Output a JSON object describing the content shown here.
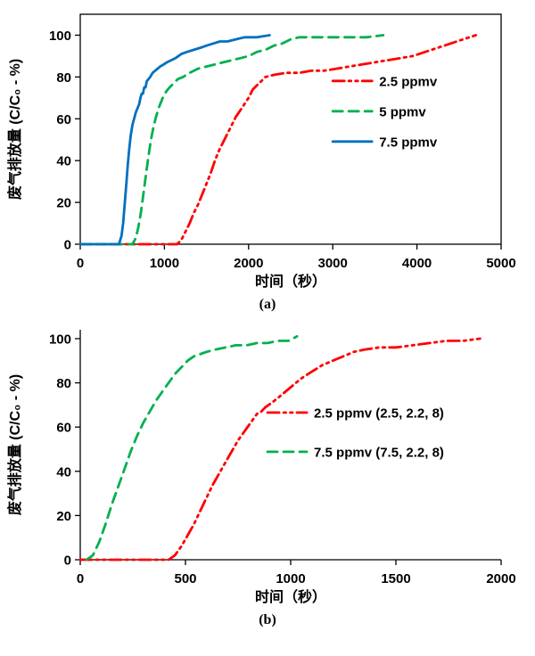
{
  "chart_data": [
    {
      "caption": "(a)",
      "type": "line",
      "xlabel": "时间（秒）",
      "ylabel": "废气排放量 (C/C₀ - %)",
      "xlim": [
        0,
        5000
      ],
      "ylim": [
        0,
        110
      ],
      "xticks": [
        0,
        1000,
        2000,
        3000,
        4000,
        5000
      ],
      "yticks": [
        0,
        20,
        40,
        60,
        80,
        100
      ],
      "frame": "box",
      "grid": false,
      "legend_pos": {
        "x": 0.6,
        "y": 0.29
      },
      "legend_spacing": 34,
      "series": [
        {
          "name": "2.5 ppmv",
          "color": "#ff0000",
          "dash": "dashdotdot",
          "points": [
            [
              0,
              0
            ],
            [
              400,
              0
            ],
            [
              800,
              0
            ],
            [
              1150,
              0
            ],
            [
              1200,
              2
            ],
            [
              1250,
              6
            ],
            [
              1300,
              10
            ],
            [
              1350,
              15
            ],
            [
              1400,
              19
            ],
            [
              1450,
              24
            ],
            [
              1500,
              29
            ],
            [
              1550,
              34
            ],
            [
              1600,
              40
            ],
            [
              1650,
              45
            ],
            [
              1700,
              49
            ],
            [
              1750,
              53
            ],
            [
              1800,
              57
            ],
            [
              1850,
              61
            ],
            [
              1900,
              64
            ],
            [
              1950,
              67
            ],
            [
              2000,
              70
            ],
            [
              2050,
              74
            ],
            [
              2100,
              76
            ],
            [
              2150,
              78
            ],
            [
              2200,
              80
            ],
            [
              2300,
              81
            ],
            [
              2450,
              82
            ],
            [
              2600,
              82
            ],
            [
              2750,
              83
            ],
            [
              2900,
              83
            ],
            [
              3050,
              84
            ],
            [
              3200,
              85
            ],
            [
              3350,
              86
            ],
            [
              3500,
              87
            ],
            [
              3650,
              88
            ],
            [
              3800,
              89
            ],
            [
              3950,
              90
            ],
            [
              4100,
              92
            ],
            [
              4250,
              94
            ],
            [
              4400,
              96
            ],
            [
              4550,
              98
            ],
            [
              4700,
              100
            ]
          ]
        },
        {
          "name": "5 ppmv",
          "color": "#00b050",
          "dash": "dashed",
          "points": [
            [
              0,
              0
            ],
            [
              300,
              0
            ],
            [
              620,
              0
            ],
            [
              660,
              3
            ],
            [
              690,
              8
            ],
            [
              720,
              15
            ],
            [
              750,
              24
            ],
            [
              780,
              33
            ],
            [
              810,
              42
            ],
            [
              840,
              50
            ],
            [
              870,
              56
            ],
            [
              900,
              61
            ],
            [
              940,
              66
            ],
            [
              980,
              70
            ],
            [
              1020,
              73
            ],
            [
              1060,
              75
            ],
            [
              1110,
              77
            ],
            [
              1160,
              79
            ],
            [
              1220,
              80
            ],
            [
              1300,
              82
            ],
            [
              1400,
              84
            ],
            [
              1500,
              85
            ],
            [
              1600,
              86
            ],
            [
              1700,
              87
            ],
            [
              1800,
              88
            ],
            [
              1900,
              89
            ],
            [
              2000,
              90
            ],
            [
              2100,
              92
            ],
            [
              2200,
              93
            ],
            [
              2300,
              95
            ],
            [
              2400,
              96
            ],
            [
              2500,
              98
            ],
            [
              2600,
              99
            ],
            [
              2800,
              99
            ],
            [
              3000,
              99
            ],
            [
              3200,
              99
            ],
            [
              3400,
              99
            ],
            [
              3600,
              100
            ]
          ]
        },
        {
          "name": "7.5 ppmv",
          "color": "#0070c0",
          "dash": "solid",
          "points": [
            [
              0,
              0
            ],
            [
              200,
              0
            ],
            [
              460,
              0
            ],
            [
              490,
              4
            ],
            [
              510,
              10
            ],
            [
              530,
              20
            ],
            [
              550,
              30
            ],
            [
              565,
              38
            ],
            [
              580,
              45
            ],
            [
              600,
              52
            ],
            [
              620,
              57
            ],
            [
              640,
              60
            ],
            [
              660,
              63
            ],
            [
              680,
              65
            ],
            [
              700,
              67
            ],
            [
              715,
              70
            ],
            [
              730,
              72
            ],
            [
              745,
              72
            ],
            [
              760,
              75
            ],
            [
              775,
              75
            ],
            [
              790,
              78
            ],
            [
              810,
              79
            ],
            [
              830,
              80
            ],
            [
              860,
              82
            ],
            [
              890,
              83
            ],
            [
              920,
              84
            ],
            [
              950,
              85
            ],
            [
              990,
              86
            ],
            [
              1030,
              87
            ],
            [
              1080,
              88
            ],
            [
              1130,
              89
            ],
            [
              1200,
              91
            ],
            [
              1270,
              92
            ],
            [
              1350,
              93
            ],
            [
              1430,
              94
            ],
            [
              1500,
              95
            ],
            [
              1580,
              96
            ],
            [
              1660,
              97
            ],
            [
              1750,
              97
            ],
            [
              1850,
              98
            ],
            [
              1950,
              99
            ],
            [
              2100,
              99
            ],
            [
              2250,
              100
            ]
          ]
        }
      ]
    },
    {
      "caption": "(b)",
      "type": "line",
      "xlabel": "时间（秒）",
      "ylabel": "废气排放量 (C/C₀ - %)",
      "xlim": [
        0,
        2000
      ],
      "ylim": [
        0,
        104
      ],
      "xticks": [
        0,
        500,
        1000,
        1500,
        2000
      ],
      "yticks": [
        0,
        20,
        40,
        60,
        80,
        100
      ],
      "frame": "axes",
      "grid": false,
      "legend_pos": {
        "x": 0.445,
        "y": 0.36
      },
      "legend_spacing": 44,
      "series": [
        {
          "name": "2.5 ppmv (2.5, 2.2, 8)",
          "color": "#ff0000",
          "dash": "dashdotdot",
          "points": [
            [
              0,
              0
            ],
            [
              150,
              0
            ],
            [
              300,
              0
            ],
            [
              420,
              0
            ],
            [
              450,
              2
            ],
            [
              480,
              6
            ],
            [
              510,
              11
            ],
            [
              540,
              16
            ],
            [
              570,
              22
            ],
            [
              600,
              28
            ],
            [
              630,
              34
            ],
            [
              660,
              39
            ],
            [
              690,
              44
            ],
            [
              720,
              49
            ],
            [
              750,
              54
            ],
            [
              780,
              58
            ],
            [
              810,
              62
            ],
            [
              840,
              66
            ],
            [
              860,
              67
            ],
            [
              880,
              69
            ],
            [
              910,
              71
            ],
            [
              950,
              74
            ],
            [
              1000,
              78
            ],
            [
              1050,
              82
            ],
            [
              1100,
              85
            ],
            [
              1150,
              88
            ],
            [
              1200,
              90
            ],
            [
              1250,
              92
            ],
            [
              1300,
              94
            ],
            [
              1350,
              95
            ],
            [
              1420,
              96
            ],
            [
              1500,
              96
            ],
            [
              1580,
              97
            ],
            [
              1660,
              98
            ],
            [
              1740,
              99
            ],
            [
              1820,
              99
            ],
            [
              1900,
              100
            ]
          ]
        },
        {
          "name": "7.5 ppmv (7.5, 2.2, 8)",
          "color": "#00b050",
          "dash": "dashed",
          "points": [
            [
              30,
              0
            ],
            [
              60,
              2
            ],
            [
              90,
              8
            ],
            [
              120,
              16
            ],
            [
              150,
              25
            ],
            [
              180,
              33
            ],
            [
              210,
              41
            ],
            [
              240,
              49
            ],
            [
              270,
              56
            ],
            [
              300,
              62
            ],
            [
              330,
              67
            ],
            [
              360,
              72
            ],
            [
              390,
              76
            ],
            [
              420,
              80
            ],
            [
              450,
              84
            ],
            [
              480,
              87
            ],
            [
              510,
              90
            ],
            [
              540,
              92
            ],
            [
              570,
              93
            ],
            [
              600,
              94
            ],
            [
              640,
              95
            ],
            [
              690,
              96
            ],
            [
              740,
              97
            ],
            [
              790,
              97
            ],
            [
              840,
              98
            ],
            [
              890,
              98
            ],
            [
              940,
              99
            ],
            [
              990,
              99
            ],
            [
              1030,
              101
            ]
          ]
        }
      ]
    }
  ]
}
